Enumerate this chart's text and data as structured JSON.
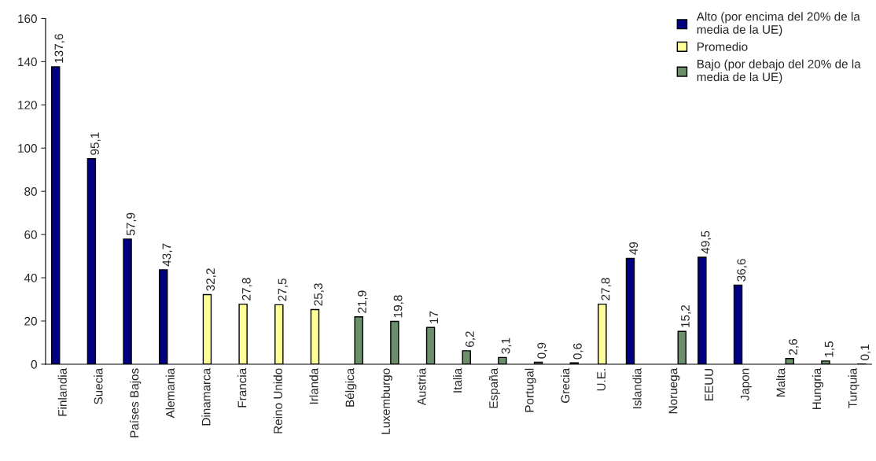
{
  "chart_data": {
    "type": "bar",
    "categories": [
      "Finlandia",
      "Suecia",
      "Países Bajos",
      "Alemania",
      "Dinamarca",
      "Francia",
      "Reino Unido",
      "Irlanda",
      "Bélgica",
      "Luxemburgo",
      "Austria",
      "Italia",
      "España",
      "Portugal",
      "Grecia",
      "U.E.",
      "Islandia",
      "Noruega",
      "EEUU",
      "Japon",
      "Malta",
      "Hungria",
      "Turquia"
    ],
    "series": [
      {
        "name": "Alto (por encima del 20% de la media de la UE)",
        "color": "#000080",
        "values": [
          137.6,
          95.1,
          57.9,
          43.7,
          null,
          null,
          null,
          null,
          null,
          null,
          null,
          null,
          null,
          null,
          null,
          null,
          49,
          null,
          49.5,
          36.6,
          null,
          null,
          null
        ],
        "value_labels": [
          "137,6",
          "95,1",
          "57,9",
          "43,7",
          null,
          null,
          null,
          null,
          null,
          null,
          null,
          null,
          null,
          null,
          null,
          null,
          "49",
          null,
          "49,5",
          "36,6",
          null,
          null,
          null
        ]
      },
      {
        "name": "Promedio",
        "color": "#ffff99",
        "values": [
          null,
          null,
          null,
          null,
          32.2,
          27.8,
          27.5,
          25.3,
          null,
          null,
          null,
          null,
          null,
          null,
          null,
          27.8,
          null,
          null,
          null,
          null,
          null,
          null,
          null
        ],
        "value_labels": [
          null,
          null,
          null,
          null,
          "32,2",
          "27,8",
          "27,5",
          "25,3",
          null,
          null,
          null,
          null,
          null,
          null,
          null,
          "27,8",
          null,
          null,
          null,
          null,
          null,
          null,
          null
        ]
      },
      {
        "name": "Bajo (por debajo del 20% de la media de la UE)",
        "color": "#6b8f6b",
        "values": [
          null,
          null,
          null,
          null,
          null,
          null,
          null,
          null,
          21.9,
          19.8,
          17,
          6.2,
          3.1,
          0.9,
          0.6,
          null,
          null,
          15.2,
          null,
          null,
          2.6,
          1.5,
          0.1
        ],
        "value_labels": [
          null,
          null,
          null,
          null,
          null,
          null,
          null,
          null,
          "21,9",
          "19,8",
          "17",
          "6,2",
          "3,1",
          "0,9",
          "0,6",
          null,
          null,
          "15,2",
          null,
          null,
          "2,6",
          "1,5",
          "0,1"
        ]
      }
    ],
    "ylim": [
      0,
      160
    ],
    "yticks": [
      0,
      20,
      40,
      60,
      80,
      100,
      120,
      140,
      160
    ],
    "grid": false,
    "legend": "top right"
  }
}
